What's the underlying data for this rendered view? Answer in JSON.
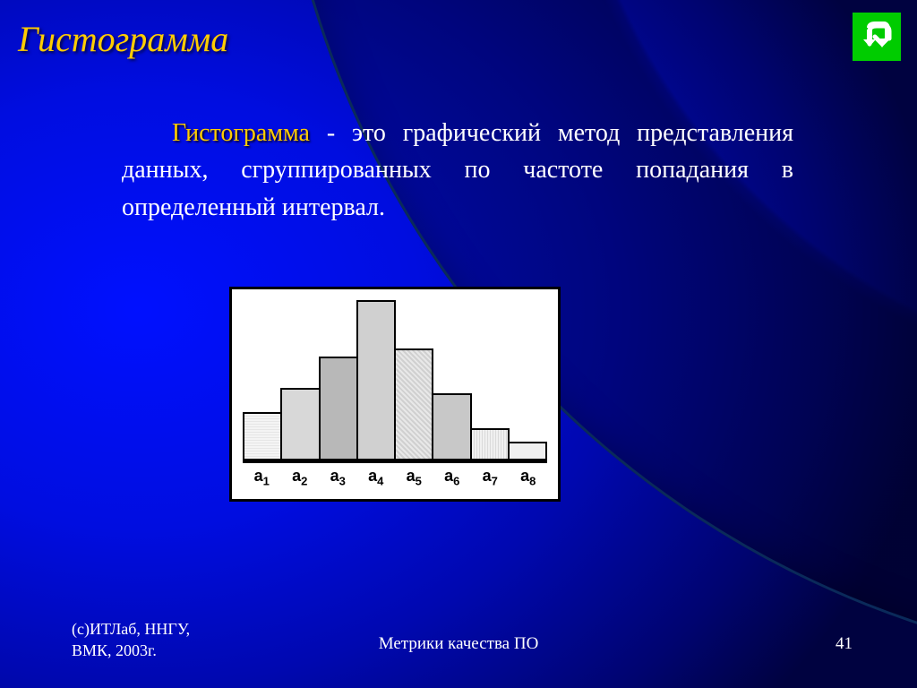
{
  "title": "Гистограмма",
  "body_highlight": "Гистограмма",
  "body_rest": " - это графический метод представления данных, сгруппированных по частоте попадания в определенный интервал.",
  "chart": {
    "type": "histogram",
    "bar_heights_pct": [
      30,
      45,
      65,
      100,
      70,
      42,
      20,
      12
    ],
    "bar_fills": [
      "repeating-linear-gradient(0deg,#f4f4f4,#f4f4f4 2px,#e6e6e6 2px,#e6e6e6 3px)",
      "#d8d8d8",
      "#b8b8b8",
      "#d0d0d0",
      "repeating-linear-gradient(45deg,#e8e8e8,#e8e8e8 2px,#d0d0d0 2px,#d0d0d0 4px)",
      "#c8c8c8",
      "repeating-linear-gradient(90deg,#f0f0f0,#f0f0f0 2px,#dadada 2px,#dadada 3px)",
      "#f0f0f0"
    ],
    "labels": [
      "a₁",
      "a₂",
      "a₃",
      "a₄",
      "a₅",
      "a₆",
      "a₇",
      "a₈"
    ],
    "frame_bg": "#ffffff",
    "axis_color": "#000000",
    "label_fontsize": 18
  },
  "footer": {
    "left_line1": "(с)ИТЛаб, ННГУ,",
    "left_line2": "ВМК, 2003г.",
    "center": "Метрики  качества ПО",
    "page": "41"
  },
  "nav": {
    "back_icon": "return-icon",
    "back_bg": "#00cc00",
    "back_stroke": "#ffffff"
  }
}
